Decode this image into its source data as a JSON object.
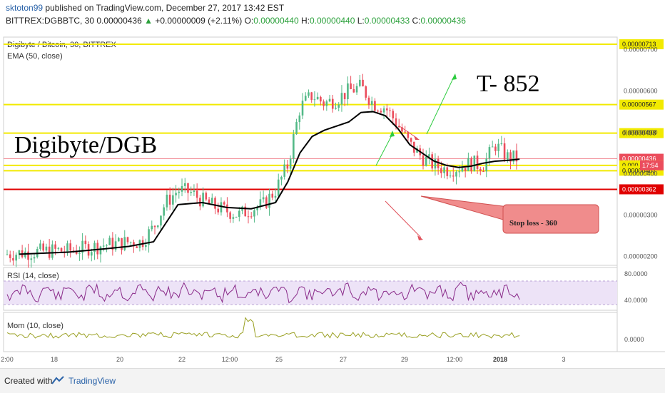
{
  "header": {
    "user": "sktoton99",
    "published": "published on TradingView.com, December 27, 2017 13:42 EST",
    "symbol_line_a": "BITTREX:DGBBTC, 30  0.00000436",
    "change_arrow": "▲",
    "change": "+0.00000009 (+2.11%)",
    "ohlc_o_label": "O:",
    "ohlc_o": "0.00000440",
    "ohlc_h_label": "H:",
    "ohlc_h": "0.00000440",
    "ohlc_l_label": "L:",
    "ohlc_l": "0.00000433",
    "ohlc_c_label": "C:",
    "ohlc_c": "0.00000436"
  },
  "main_pane": {
    "title": "Digibyte / Bitcoin, 30, BITTREX",
    "indicator": "EMA (50, close)",
    "annotation_big": "Digibyte/DGB",
    "annotation_target": "T- 852",
    "stop_loss_label": "Stop loss - 360",
    "countdown": "17:54"
  },
  "rsi_pane": {
    "title": "RSI (14, close)"
  },
  "mom_pane": {
    "title": "Mom (10, close)"
  },
  "footer": {
    "created": "Created with",
    "brand": "TradingView"
  },
  "colors": {
    "up": "#53b987",
    "down": "#eb4d5c",
    "ema": "#000000",
    "level_yellow": "#f2ea00",
    "level_red": "#e00000",
    "rsi_line": "#8a2b8a",
    "rsi_band": "#ede3f7",
    "mom_line": "#9aa023",
    "arrow_green": "#2ecc40",
    "arrow_red": "#e0505a"
  },
  "chart_data": [
    {
      "type": "line",
      "name": "price",
      "x_ticks": [
        "2:00",
        "18",
        "20",
        "22",
        "12:00",
        "25",
        "27",
        "29",
        "12:00",
        "2018",
        "3"
      ],
      "y_ticks": [
        "0.00000700",
        "0.00000600",
        "0.00000500",
        "0.00000400",
        "0.00000300",
        "0.00000200"
      ],
      "ylim": [
        1.85e-06,
        7.2e-06
      ],
      "price_path": [
        [
          0,
          2.05e-06
        ],
        [
          0.02,
          2.08e-06
        ],
        [
          0.04,
          2.1e-06
        ],
        [
          0.06,
          2.12e-06
        ],
        [
          0.08,
          2.14e-06
        ],
        [
          0.1,
          2.13e-06
        ],
        [
          0.12,
          2.18e-06
        ],
        [
          0.14,
          2.22e-06
        ],
        [
          0.16,
          2.28e-06
        ],
        [
          0.18,
          2.3e-06
        ],
        [
          0.2,
          2.35e-06
        ],
        [
          0.22,
          2.34e-06
        ],
        [
          0.24,
          2.7e-06
        ],
        [
          0.26,
          3.3e-06
        ],
        [
          0.28,
          3.6e-06
        ],
        [
          0.3,
          3.55e-06
        ],
        [
          0.32,
          3.35e-06
        ],
        [
          0.34,
          3.2e-06
        ],
        [
          0.36,
          3.1e-06
        ],
        [
          0.38,
          3e-06
        ],
        [
          0.4,
          3.15e-06
        ],
        [
          0.42,
          3.25e-06
        ],
        [
          0.44,
          3.6e-06
        ],
        [
          0.46,
          4.2e-06
        ],
        [
          0.48,
          5.6e-06
        ],
        [
          0.5,
          5.9e-06
        ],
        [
          0.52,
          5.7e-06
        ],
        [
          0.54,
          5.8e-06
        ],
        [
          0.56,
          6e-06
        ],
        [
          0.58,
          6.1e-06
        ],
        [
          0.6,
          5.7e-06
        ],
        [
          0.62,
          5.6e-06
        ],
        [
          0.64,
          5.2e-06
        ],
        [
          0.66,
          4.7e-06
        ],
        [
          0.68,
          4.4e-06
        ],
        [
          0.7,
          4.2e-06
        ],
        [
          0.72,
          4.1e-06
        ],
        [
          0.74,
          4.15e-06
        ],
        [
          0.76,
          4.25e-06
        ],
        [
          0.78,
          4.2e-06
        ],
        [
          0.8,
          4.7e-06
        ],
        [
          0.82,
          4.4e-06
        ],
        [
          0.84,
          4.36e-06
        ]
      ],
      "ema_path": [
        [
          0.02,
          2.05e-06
        ],
        [
          0.1,
          2.1e-06
        ],
        [
          0.16,
          2.18e-06
        ],
        [
          0.2,
          2.24e-06
        ],
        [
          0.24,
          2.35e-06
        ],
        [
          0.28,
          3.25e-06
        ],
        [
          0.32,
          3.3e-06
        ],
        [
          0.36,
          3.18e-06
        ],
        [
          0.4,
          3.15e-06
        ],
        [
          0.44,
          3.3e-06
        ],
        [
          0.46,
          3.8e-06
        ],
        [
          0.48,
          4.5e-06
        ],
        [
          0.5,
          4.9e-06
        ],
        [
          0.52,
          5.05e-06
        ],
        [
          0.56,
          5.25e-06
        ],
        [
          0.58,
          5.48e-06
        ],
        [
          0.6,
          5.5e-06
        ],
        [
          0.62,
          5.4e-06
        ],
        [
          0.64,
          5.1e-06
        ],
        [
          0.66,
          4.7e-06
        ],
        [
          0.68,
          4.5e-06
        ],
        [
          0.7,
          4.3e-06
        ],
        [
          0.72,
          4.2e-06
        ],
        [
          0.74,
          4.15e-06
        ],
        [
          0.76,
          4.18e-06
        ],
        [
          0.78,
          4.25e-06
        ],
        [
          0.8,
          4.3e-06
        ],
        [
          0.82,
          4.32e-06
        ],
        [
          0.84,
          4.35e-06
        ]
      ],
      "levels": [
        {
          "value": 7.13e-06,
          "label": "0.00000713",
          "color": "#f2ea00"
        },
        {
          "value": 5.67e-06,
          "label": "0.00000567",
          "color": "#f2ea00"
        },
        {
          "value": 4.98e-06,
          "label": "0.00000498",
          "color": "#f2ea00"
        },
        {
          "value": 4.36e-06,
          "label": "0.00000436",
          "color": "#eb4d5c"
        },
        {
          "value": 4.2e-06,
          "label": "0.000",
          "color": "#f2ea00"
        },
        {
          "value": 4.07e-06,
          "label": "0.00000407",
          "color": "#f2ea00"
        },
        {
          "value": 3.62e-06,
          "label": "0.00000362",
          "color": "#e00000"
        }
      ]
    },
    {
      "type": "line",
      "name": "RSI",
      "y_ticks": [
        "80.0000",
        "40.0000"
      ],
      "ylim": [
        20,
        90
      ],
      "band": [
        30,
        70
      ]
    },
    {
      "type": "line",
      "name": "Mom",
      "y_ticks": [
        "0.0000"
      ]
    }
  ]
}
